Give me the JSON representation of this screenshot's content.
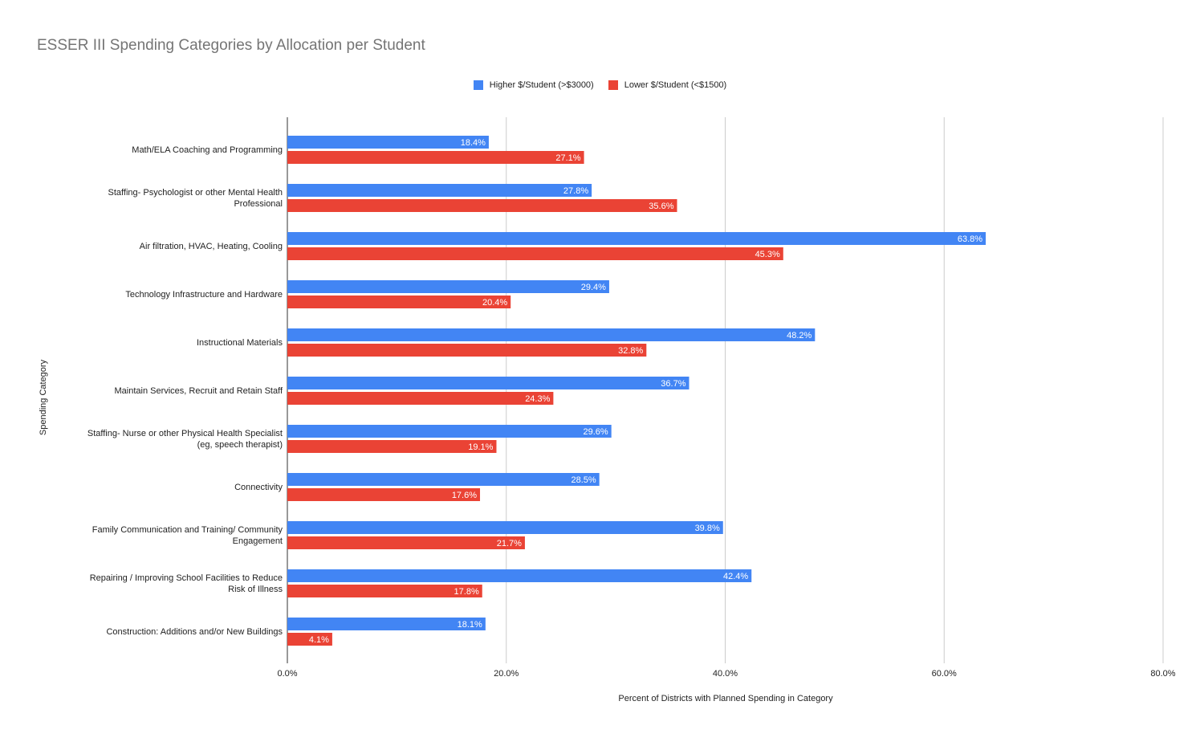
{
  "chart_data": {
    "type": "bar",
    "orientation": "horizontal",
    "title": "ESSER III Spending Categories by Allocation per Student",
    "xlabel": "Percent of Districts with Planned Spending in Category",
    "ylabel": "Spending Category",
    "xlim": [
      0,
      80
    ],
    "x_ticks": [
      "0.0%",
      "20.0%",
      "40.0%",
      "60.0%",
      "80.0%"
    ],
    "grid": true,
    "legend_position": "top-center",
    "categories": [
      [
        "Math/ELA Coaching and Programming"
      ],
      [
        "Staffing- Psychologist or other Mental Health",
        "Professional"
      ],
      [
        "Air filtration, HVAC, Heating, Cooling"
      ],
      [
        "Technology Infrastructure and Hardware"
      ],
      [
        "Instructional Materials"
      ],
      [
        "Maintain Services, Recruit and Retain Staff"
      ],
      [
        "Staffing- Nurse or other Physical Health Specialist",
        "(eg, speech therapist)"
      ],
      [
        "Connectivity"
      ],
      [
        "Family Communication and Training/ Community",
        "Engagement"
      ],
      [
        "Repairing / Improving School Facilities to Reduce",
        "Risk of Illness"
      ],
      [
        "Construction: Additions and/or New Buildings"
      ]
    ],
    "series": [
      {
        "name": "Higher $/Student (>$3000)",
        "color": "#4285f4",
        "values": [
          18.4,
          27.8,
          63.8,
          29.4,
          48.2,
          36.7,
          29.6,
          28.5,
          39.8,
          42.4,
          18.1
        ],
        "labels": [
          "18.4%",
          "27.8%",
          "63.8%",
          "29.4%",
          "48.2%",
          "36.7%",
          "29.6%",
          "28.5%",
          "39.8%",
          "42.4%",
          "18.1%"
        ]
      },
      {
        "name": "Lower $/Student (<$1500)",
        "color": "#ea4335",
        "values": [
          27.1,
          35.6,
          45.3,
          20.4,
          32.8,
          24.3,
          19.1,
          17.6,
          21.7,
          17.8,
          4.1
        ],
        "labels": [
          "27.1%",
          "35.6%",
          "45.3%",
          "20.4%",
          "32.8%",
          "24.3%",
          "19.1%",
          "17.6%",
          "21.7%",
          "17.8%",
          "4.1%"
        ]
      }
    ]
  }
}
